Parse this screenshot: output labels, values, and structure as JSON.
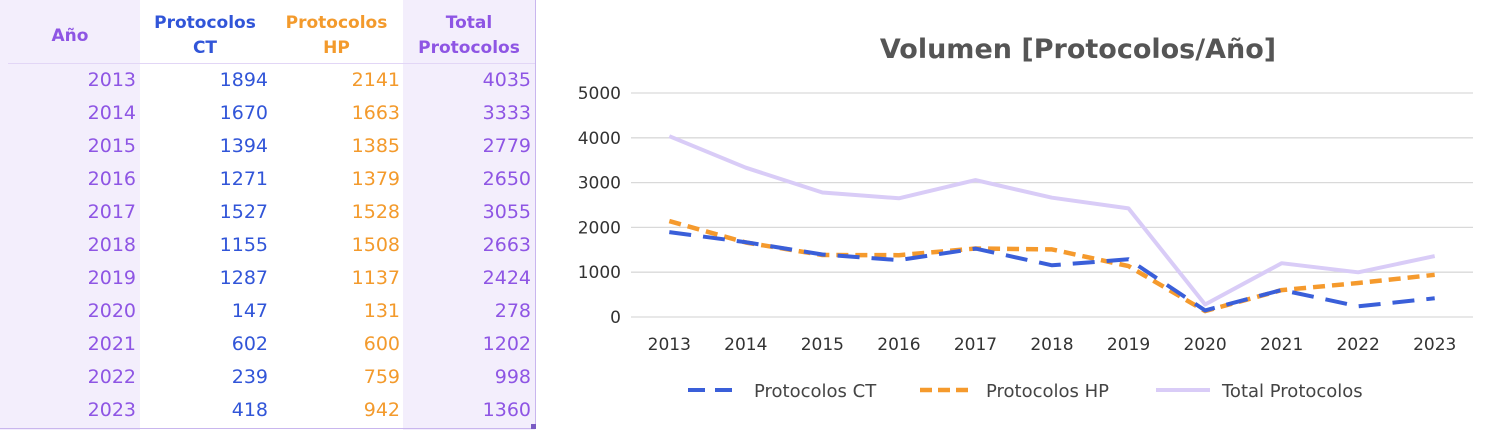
{
  "table": {
    "headers": {
      "year": [
        "Año"
      ],
      "ct": [
        "Protocolos",
        "CT"
      ],
      "hp": [
        "Protocolos",
        "HP"
      ],
      "total": [
        "Total",
        "Protocolos"
      ]
    },
    "rows": [
      {
        "year": "2013",
        "ct": "1894",
        "hp": "2141",
        "total": "4035"
      },
      {
        "year": "2014",
        "ct": "1670",
        "hp": "1663",
        "total": "3333"
      },
      {
        "year": "2015",
        "ct": "1394",
        "hp": "1385",
        "total": "2779"
      },
      {
        "year": "2016",
        "ct": "1271",
        "hp": "1379",
        "total": "2650"
      },
      {
        "year": "2017",
        "ct": "1527",
        "hp": "1528",
        "total": "3055"
      },
      {
        "year": "2018",
        "ct": "1155",
        "hp": "1508",
        "total": "2663"
      },
      {
        "year": "2019",
        "ct": "1287",
        "hp": "1137",
        "total": "2424"
      },
      {
        "year": "2020",
        "ct": "147",
        "hp": "131",
        "total": "278"
      },
      {
        "year": "2021",
        "ct": "602",
        "hp": "600",
        "total": "1202"
      },
      {
        "year": "2022",
        "ct": "239",
        "hp": "759",
        "total": "998"
      },
      {
        "year": "2023",
        "ct": "418",
        "hp": "942",
        "total": "1360"
      }
    ]
  },
  "chart_data": {
    "type": "line",
    "title": "Volumen [Protocolos/Año]",
    "xlabel": "",
    "ylabel": "",
    "x": [
      "2013",
      "2014",
      "2015",
      "2016",
      "2017",
      "2018",
      "2019",
      "2020",
      "2021",
      "2022",
      "2023"
    ],
    "ylim": [
      0,
      5000
    ],
    "yticks": [
      0,
      1000,
      2000,
      3000,
      4000,
      5000
    ],
    "grid": true,
    "legend_position": "bottom",
    "series": [
      {
        "name": "Protocolos CT",
        "values": [
          1894,
          1670,
          1394,
          1271,
          1527,
          1155,
          1287,
          147,
          602,
          239,
          418
        ],
        "color": "#3a5fd9",
        "style": "long-dash"
      },
      {
        "name": "Protocolos HP",
        "values": [
          2141,
          1663,
          1385,
          1379,
          1528,
          1508,
          1137,
          131,
          600,
          759,
          942
        ],
        "color": "#f59a2d",
        "style": "dash"
      },
      {
        "name": "Total Protocolos",
        "values": [
          4035,
          3333,
          2779,
          2650,
          3055,
          2663,
          2424,
          278,
          1202,
          998,
          1360
        ],
        "color": "#d9ccf7",
        "style": "solid"
      }
    ]
  }
}
